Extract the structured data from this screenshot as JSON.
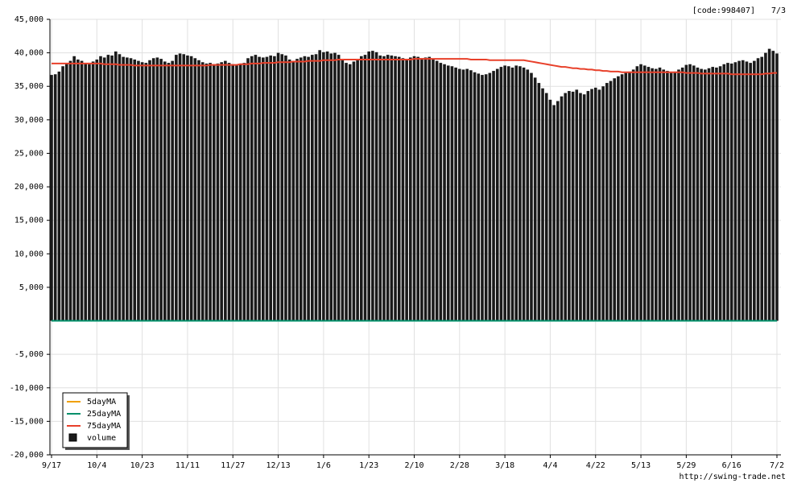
{
  "chart_data": {
    "type": "bar_line",
    "code_label": "[code:998407]",
    "date_label": "7/3",
    "source": "http://swing-trade.net",
    "categories": [
      "9/17",
      null,
      null,
      null,
      null,
      null,
      null,
      null,
      null,
      null,
      null,
      null,
      "10/4",
      null,
      null,
      null,
      null,
      null,
      null,
      null,
      null,
      null,
      null,
      null,
      "10/23",
      null,
      null,
      null,
      null,
      null,
      null,
      null,
      null,
      null,
      null,
      null,
      "11/11",
      null,
      null,
      null,
      null,
      null,
      null,
      null,
      null,
      null,
      null,
      null,
      "11/27",
      null,
      null,
      null,
      null,
      null,
      null,
      null,
      null,
      null,
      null,
      null,
      "12/13",
      null,
      null,
      null,
      null,
      null,
      null,
      null,
      null,
      null,
      null,
      null,
      "1/6",
      null,
      null,
      null,
      null,
      null,
      null,
      null,
      null,
      null,
      null,
      null,
      "1/23",
      null,
      null,
      null,
      null,
      null,
      null,
      null,
      null,
      null,
      null,
      null,
      "2/10",
      null,
      null,
      null,
      null,
      null,
      null,
      null,
      null,
      null,
      null,
      null,
      "2/28",
      null,
      null,
      null,
      null,
      null,
      null,
      null,
      null,
      null,
      null,
      null,
      "3/18",
      null,
      null,
      null,
      null,
      null,
      null,
      null,
      null,
      null,
      null,
      null,
      "4/4",
      null,
      null,
      null,
      null,
      null,
      null,
      null,
      null,
      null,
      null,
      null,
      "4/22",
      null,
      null,
      null,
      null,
      null,
      null,
      null,
      null,
      null,
      null,
      null,
      "5/13",
      null,
      null,
      null,
      null,
      null,
      null,
      null,
      null,
      null,
      null,
      null,
      "5/29",
      null,
      null,
      null,
      null,
      null,
      null,
      null,
      null,
      null,
      null,
      null,
      "6/16",
      null,
      null,
      null,
      null,
      null,
      null,
      null,
      null,
      null,
      null,
      null,
      "7/2"
    ],
    "series": [
      {
        "name": "5dayMA",
        "type": "line",
        "color": "#f0a000",
        "values": [
          0,
          0,
          0,
          0,
          0,
          0,
          0,
          0,
          0,
          0,
          0,
          0,
          0,
          0,
          0,
          0,
          0,
          0,
          0,
          0,
          0,
          0,
          0,
          0,
          0,
          0,
          0,
          0,
          0,
          0,
          0,
          0,
          0,
          0,
          0,
          0,
          0,
          0,
          0,
          0,
          0,
          0,
          0,
          0,
          0,
          0,
          0,
          0,
          0,
          0,
          0,
          0,
          0,
          0,
          0,
          0,
          0,
          0,
          0,
          0,
          0,
          0,
          0,
          0,
          0,
          0,
          0,
          0,
          0,
          0,
          0,
          0,
          0,
          0,
          0,
          0,
          0,
          0,
          0,
          0,
          0,
          0,
          0,
          0,
          0,
          0,
          0,
          0,
          0,
          0,
          0,
          0,
          0,
          0,
          0,
          0,
          0,
          0,
          0,
          0,
          0,
          0,
          0,
          0,
          0,
          0,
          0,
          0,
          0,
          0,
          0,
          0,
          0,
          0,
          0,
          0,
          0,
          0,
          0,
          0,
          0,
          0,
          0,
          0,
          0,
          0,
          0,
          0,
          0,
          0,
          0,
          0,
          0,
          0,
          0,
          0,
          0,
          0,
          0,
          0,
          0,
          0,
          0,
          0,
          0,
          0,
          0,
          0,
          0,
          0,
          0,
          0,
          0,
          0,
          0,
          0,
          0,
          0,
          0,
          0,
          0,
          0,
          0,
          0,
          0,
          0,
          0,
          0,
          0,
          0,
          0,
          0,
          0,
          0,
          0,
          0,
          0,
          0,
          0,
          0,
          0,
          0,
          0,
          0,
          0,
          0,
          0,
          0,
          0,
          0,
          0,
          0,
          0
        ]
      },
      {
        "name": "25dayMA",
        "type": "line",
        "color": "#00906a",
        "values": [
          0,
          0,
          0,
          0,
          0,
          0,
          0,
          0,
          0,
          0,
          0,
          0,
          0,
          0,
          0,
          0,
          0,
          0,
          0,
          0,
          0,
          0,
          0,
          0,
          0,
          0,
          0,
          0,
          0,
          0,
          0,
          0,
          0,
          0,
          0,
          0,
          0,
          0,
          0,
          0,
          0,
          0,
          0,
          0,
          0,
          0,
          0,
          0,
          0,
          0,
          0,
          0,
          0,
          0,
          0,
          0,
          0,
          0,
          0,
          0,
          0,
          0,
          0,
          0,
          0,
          0,
          0,
          0,
          0,
          0,
          0,
          0,
          0,
          0,
          0,
          0,
          0,
          0,
          0,
          0,
          0,
          0,
          0,
          0,
          0,
          0,
          0,
          0,
          0,
          0,
          0,
          0,
          0,
          0,
          0,
          0,
          0,
          0,
          0,
          0,
          0,
          0,
          0,
          0,
          0,
          0,
          0,
          0,
          0,
          0,
          0,
          0,
          0,
          0,
          0,
          0,
          0,
          0,
          0,
          0,
          0,
          0,
          0,
          0,
          0,
          0,
          0,
          0,
          0,
          0,
          0,
          0,
          0,
          0,
          0,
          0,
          0,
          0,
          0,
          0,
          0,
          0,
          0,
          0,
          0,
          0,
          0,
          0,
          0,
          0,
          0,
          0,
          0,
          0,
          0,
          0,
          0,
          0,
          0,
          0,
          0,
          0,
          0,
          0,
          0,
          0,
          0,
          0,
          0,
          0,
          0,
          0,
          0,
          0,
          0,
          0,
          0,
          0,
          0,
          0,
          0,
          0,
          0,
          0,
          0,
          0,
          0,
          0,
          0,
          0,
          0,
          0,
          0
        ]
      },
      {
        "name": "75dayMA",
        "type": "line",
        "color": "#e8402a",
        "values": [
          38400,
          38400,
          38400,
          38400,
          38400,
          38400,
          38400,
          38400,
          38400,
          38400,
          38400,
          38400,
          38400,
          38400,
          38300,
          38300,
          38300,
          38300,
          38200,
          38200,
          38200,
          38200,
          38100,
          38100,
          38100,
          38100,
          38100,
          38100,
          38100,
          38100,
          38100,
          38100,
          38100,
          38100,
          38100,
          38100,
          38100,
          38100,
          38100,
          38100,
          38100,
          38100,
          38200,
          38200,
          38200,
          38200,
          38200,
          38200,
          38200,
          38200,
          38300,
          38300,
          38300,
          38400,
          38400,
          38400,
          38500,
          38500,
          38500,
          38500,
          38600,
          38600,
          38600,
          38600,
          38700,
          38700,
          38700,
          38700,
          38800,
          38800,
          38800,
          38800,
          38900,
          38900,
          38900,
          38900,
          39000,
          39000,
          39000,
          39000,
          39000,
          39000,
          39000,
          39000,
          39000,
          39000,
          39000,
          39000,
          39000,
          39000,
          39000,
          39000,
          39000,
          39000,
          39000,
          39000,
          39100,
          39100,
          39100,
          39100,
          39100,
          39100,
          39100,
          39100,
          39100,
          39100,
          39100,
          39100,
          39100,
          39100,
          39100,
          39000,
          39000,
          39000,
          39000,
          39000,
          38900,
          38900,
          38900,
          38900,
          38900,
          38900,
          38900,
          38900,
          38900,
          38900,
          38800,
          38700,
          38600,
          38500,
          38400,
          38300,
          38200,
          38100,
          38000,
          37900,
          37900,
          37800,
          37700,
          37700,
          37600,
          37600,
          37500,
          37500,
          37400,
          37400,
          37300,
          37300,
          37200,
          37200,
          37200,
          37100,
          37100,
          37100,
          37100,
          37100,
          37100,
          37100,
          37100,
          37100,
          37100,
          37100,
          37100,
          37100,
          37100,
          37100,
          37100,
          37100,
          37000,
          37000,
          37000,
          37000,
          36900,
          36900,
          36900,
          36900,
          36900,
          36900,
          36900,
          36900,
          36800,
          36800,
          36800,
          36800,
          36800,
          36800,
          36800,
          36800,
          36800,
          36900,
          36900,
          37000,
          37000
        ]
      },
      {
        "name": "volume",
        "type": "bar",
        "color": "#1a1a1a",
        "values": [
          36700,
          36800,
          37200,
          38000,
          38500,
          38800,
          39500,
          39000,
          38800,
          38500,
          38300,
          38700,
          39000,
          39500,
          39300,
          39700,
          39600,
          40200,
          39800,
          39400,
          39300,
          39200,
          39000,
          38800,
          38600,
          38500,
          38900,
          39200,
          39300,
          39100,
          38700,
          38500,
          38800,
          39700,
          39900,
          39800,
          39600,
          39500,
          39200,
          38900,
          38600,
          38400,
          38500,
          38300,
          38400,
          38600,
          38800,
          38500,
          38300,
          38200,
          38400,
          38500,
          39200,
          39500,
          39700,
          39400,
          39300,
          39400,
          39600,
          39500,
          40000,
          39800,
          39600,
          39000,
          38800,
          39100,
          39300,
          39500,
          39400,
          39700,
          39800,
          40400,
          40100,
          40200,
          39900,
          40000,
          39700,
          39000,
          38500,
          38300,
          38700,
          39000,
          39500,
          39700,
          40200,
          40300,
          40100,
          39600,
          39500,
          39700,
          39600,
          39500,
          39400,
          39200,
          39100,
          39300,
          39500,
          39400,
          39200,
          39300,
          39400,
          39100,
          38800,
          38500,
          38300,
          38100,
          38000,
          37800,
          37600,
          37500,
          37600,
          37400,
          37100,
          36900,
          36700,
          36800,
          37000,
          37300,
          37600,
          37900,
          38100,
          38000,
          37800,
          38100,
          38000,
          37800,
          37500,
          37000,
          36300,
          35500,
          34700,
          34000,
          33000,
          32200,
          32800,
          33500,
          34000,
          34300,
          34200,
          34500,
          34000,
          33800,
          34300,
          34600,
          34800,
          34500,
          35000,
          35500,
          35800,
          36200,
          36500,
          36800,
          37000,
          37200,
          37500,
          38000,
          38300,
          38100,
          37900,
          37700,
          37600,
          37800,
          37500,
          37300,
          37000,
          37200,
          37500,
          37800,
          38200,
          38300,
          38100,
          37800,
          37600,
          37500,
          37700,
          37900,
          37800,
          38000,
          38300,
          38500,
          38400,
          38600,
          38800,
          38900,
          38700,
          38500,
          38800,
          39200,
          39400,
          40000,
          40600,
          40300,
          39900
        ]
      }
    ],
    "ylim": [
      -20000,
      45000
    ],
    "yticks": [
      {
        "value": -20000,
        "label": "-20,000"
      },
      {
        "value": -15000,
        "label": "-15,000"
      },
      {
        "value": -10000,
        "label": "-10,000"
      },
      {
        "value": -5000,
        "label": "-5,000"
      },
      {
        "value": 5000,
        "label": "5,000"
      },
      {
        "value": 10000,
        "label": "10,000"
      },
      {
        "value": 15000,
        "label": "15,000"
      },
      {
        "value": 20000,
        "label": "20,000"
      },
      {
        "value": 25000,
        "label": "25,000"
      },
      {
        "value": 30000,
        "label": "30,000"
      },
      {
        "value": 35000,
        "label": "35,000"
      },
      {
        "value": 40000,
        "label": "40,000"
      },
      {
        "value": 45000,
        "label": "45,000"
      }
    ],
    "grid": true,
    "legend_position": "bottom-left"
  }
}
